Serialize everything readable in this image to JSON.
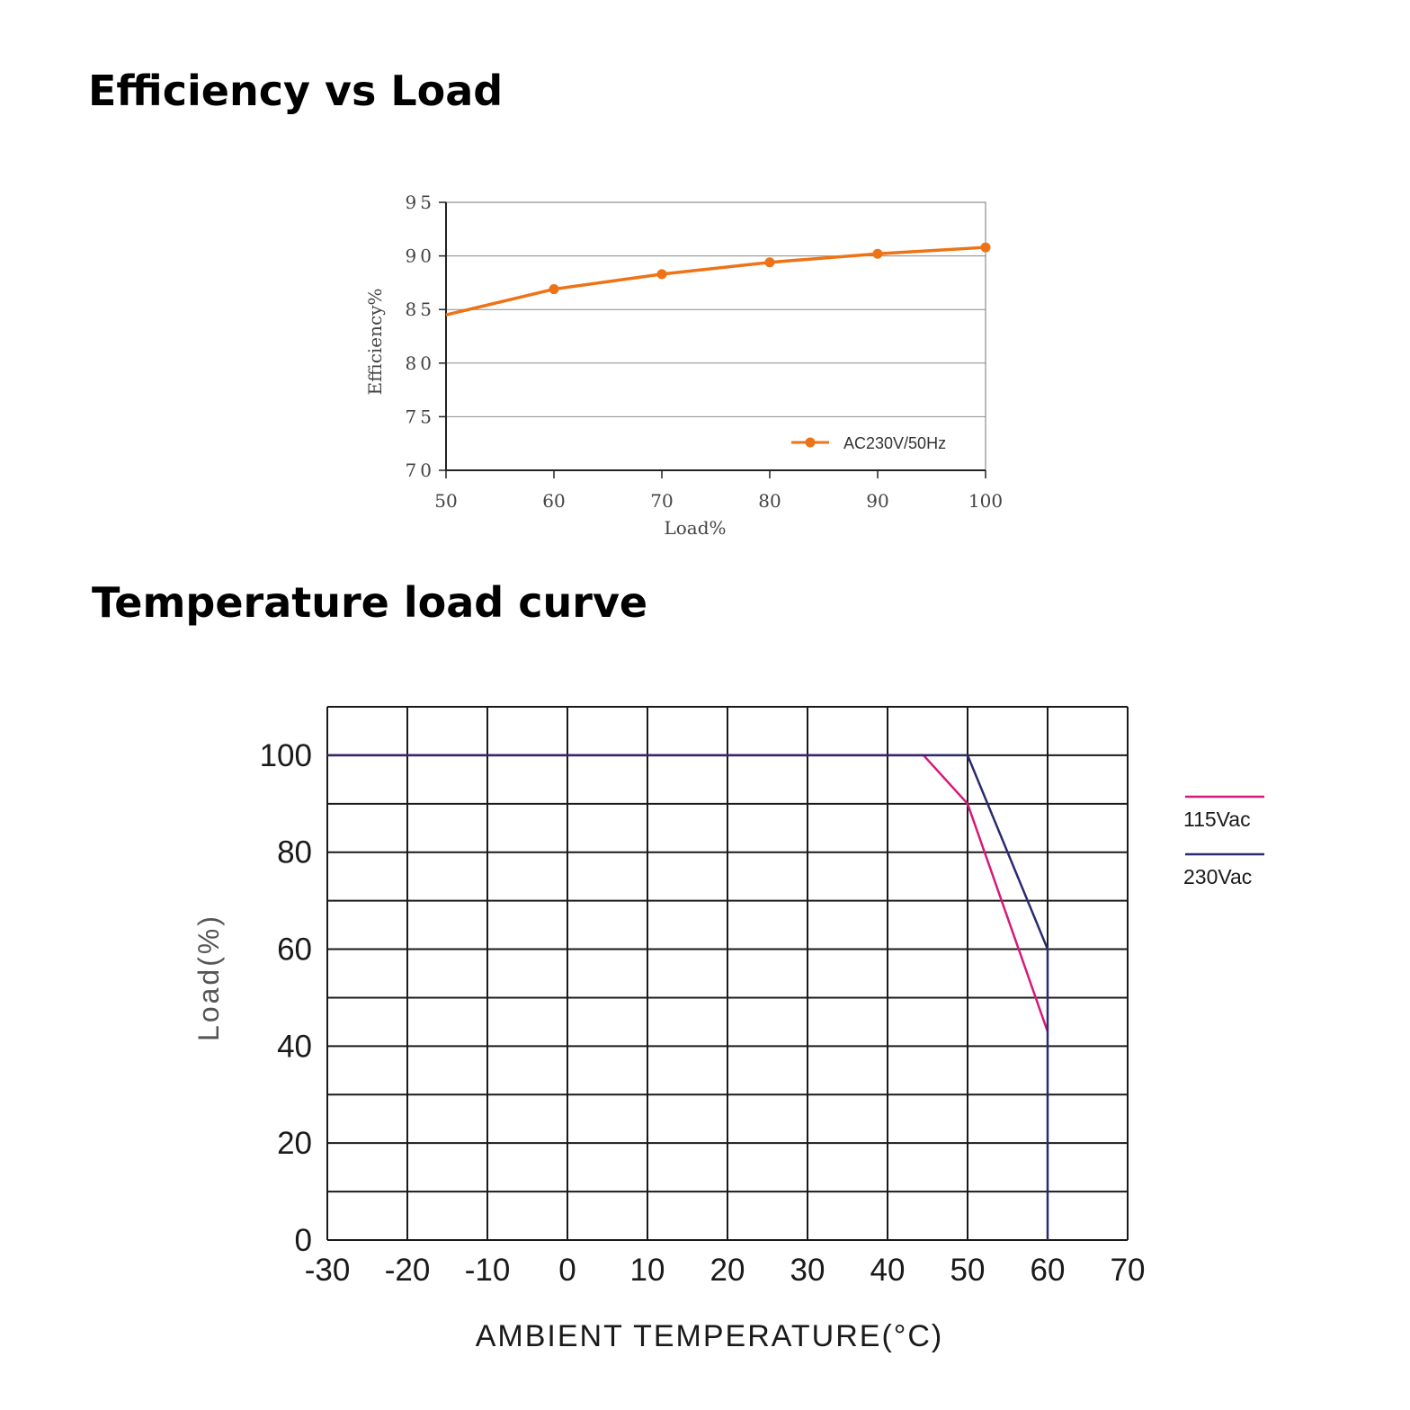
{
  "titles": {
    "chart1": "Efficiency vs Load",
    "chart2": "Temperature load curve"
  },
  "colors": {
    "efficiency_line": "#ee7316",
    "vac115": "#d6197a",
    "vac230": "#2b2a6e",
    "grid": "#1a1a1a"
  },
  "chart_data": [
    {
      "type": "line",
      "title": "Efficiency vs Load",
      "xlabel": "Load%",
      "ylabel": "Efficiency%",
      "xlim": [
        50,
        100
      ],
      "ylim": [
        70,
        95
      ],
      "x_ticks": [
        "50",
        "60",
        "70",
        "80",
        "90",
        "100"
      ],
      "y_ticks": [
        "95",
        "90",
        "85",
        "80",
        "75",
        "70"
      ],
      "grid": "horizontal",
      "legend_position": "bottom-right",
      "series": [
        {
          "name": "AC230V/50Hz",
          "x": [
            50,
            60,
            70,
            80,
            90,
            100
          ],
          "y": [
            84.5,
            86.9,
            88.3,
            89.4,
            90.2,
            90.8
          ],
          "color": "#ee7316",
          "markers": [
            60,
            70,
            80,
            90,
            100
          ]
        }
      ]
    },
    {
      "type": "line",
      "title": "Temperature load curve",
      "xlabel": "AMBIENT TEMPERATURE(°C)",
      "ylabel": "Load(%)",
      "xlim": [
        -30,
        70
      ],
      "ylim": [
        0,
        110
      ],
      "x_ticks": [
        "-30",
        "-20",
        "-10",
        "0",
        "10",
        "20",
        "30",
        "40",
        "50",
        "60",
        "70"
      ],
      "y_ticks": [
        "100",
        "80",
        "60",
        "40",
        "20",
        "0"
      ],
      "grid": "on",
      "legend_position": "right",
      "series": [
        {
          "name": "115Vac",
          "x": [
            -30,
            44.5,
            50,
            60
          ],
          "y": [
            100,
            100,
            90,
            43
          ],
          "color": "#d6197a"
        },
        {
          "name": "230Vac",
          "x": [
            -30,
            50,
            60,
            60
          ],
          "y": [
            100,
            100,
            60,
            0
          ],
          "color": "#2b2a6e"
        }
      ]
    }
  ]
}
